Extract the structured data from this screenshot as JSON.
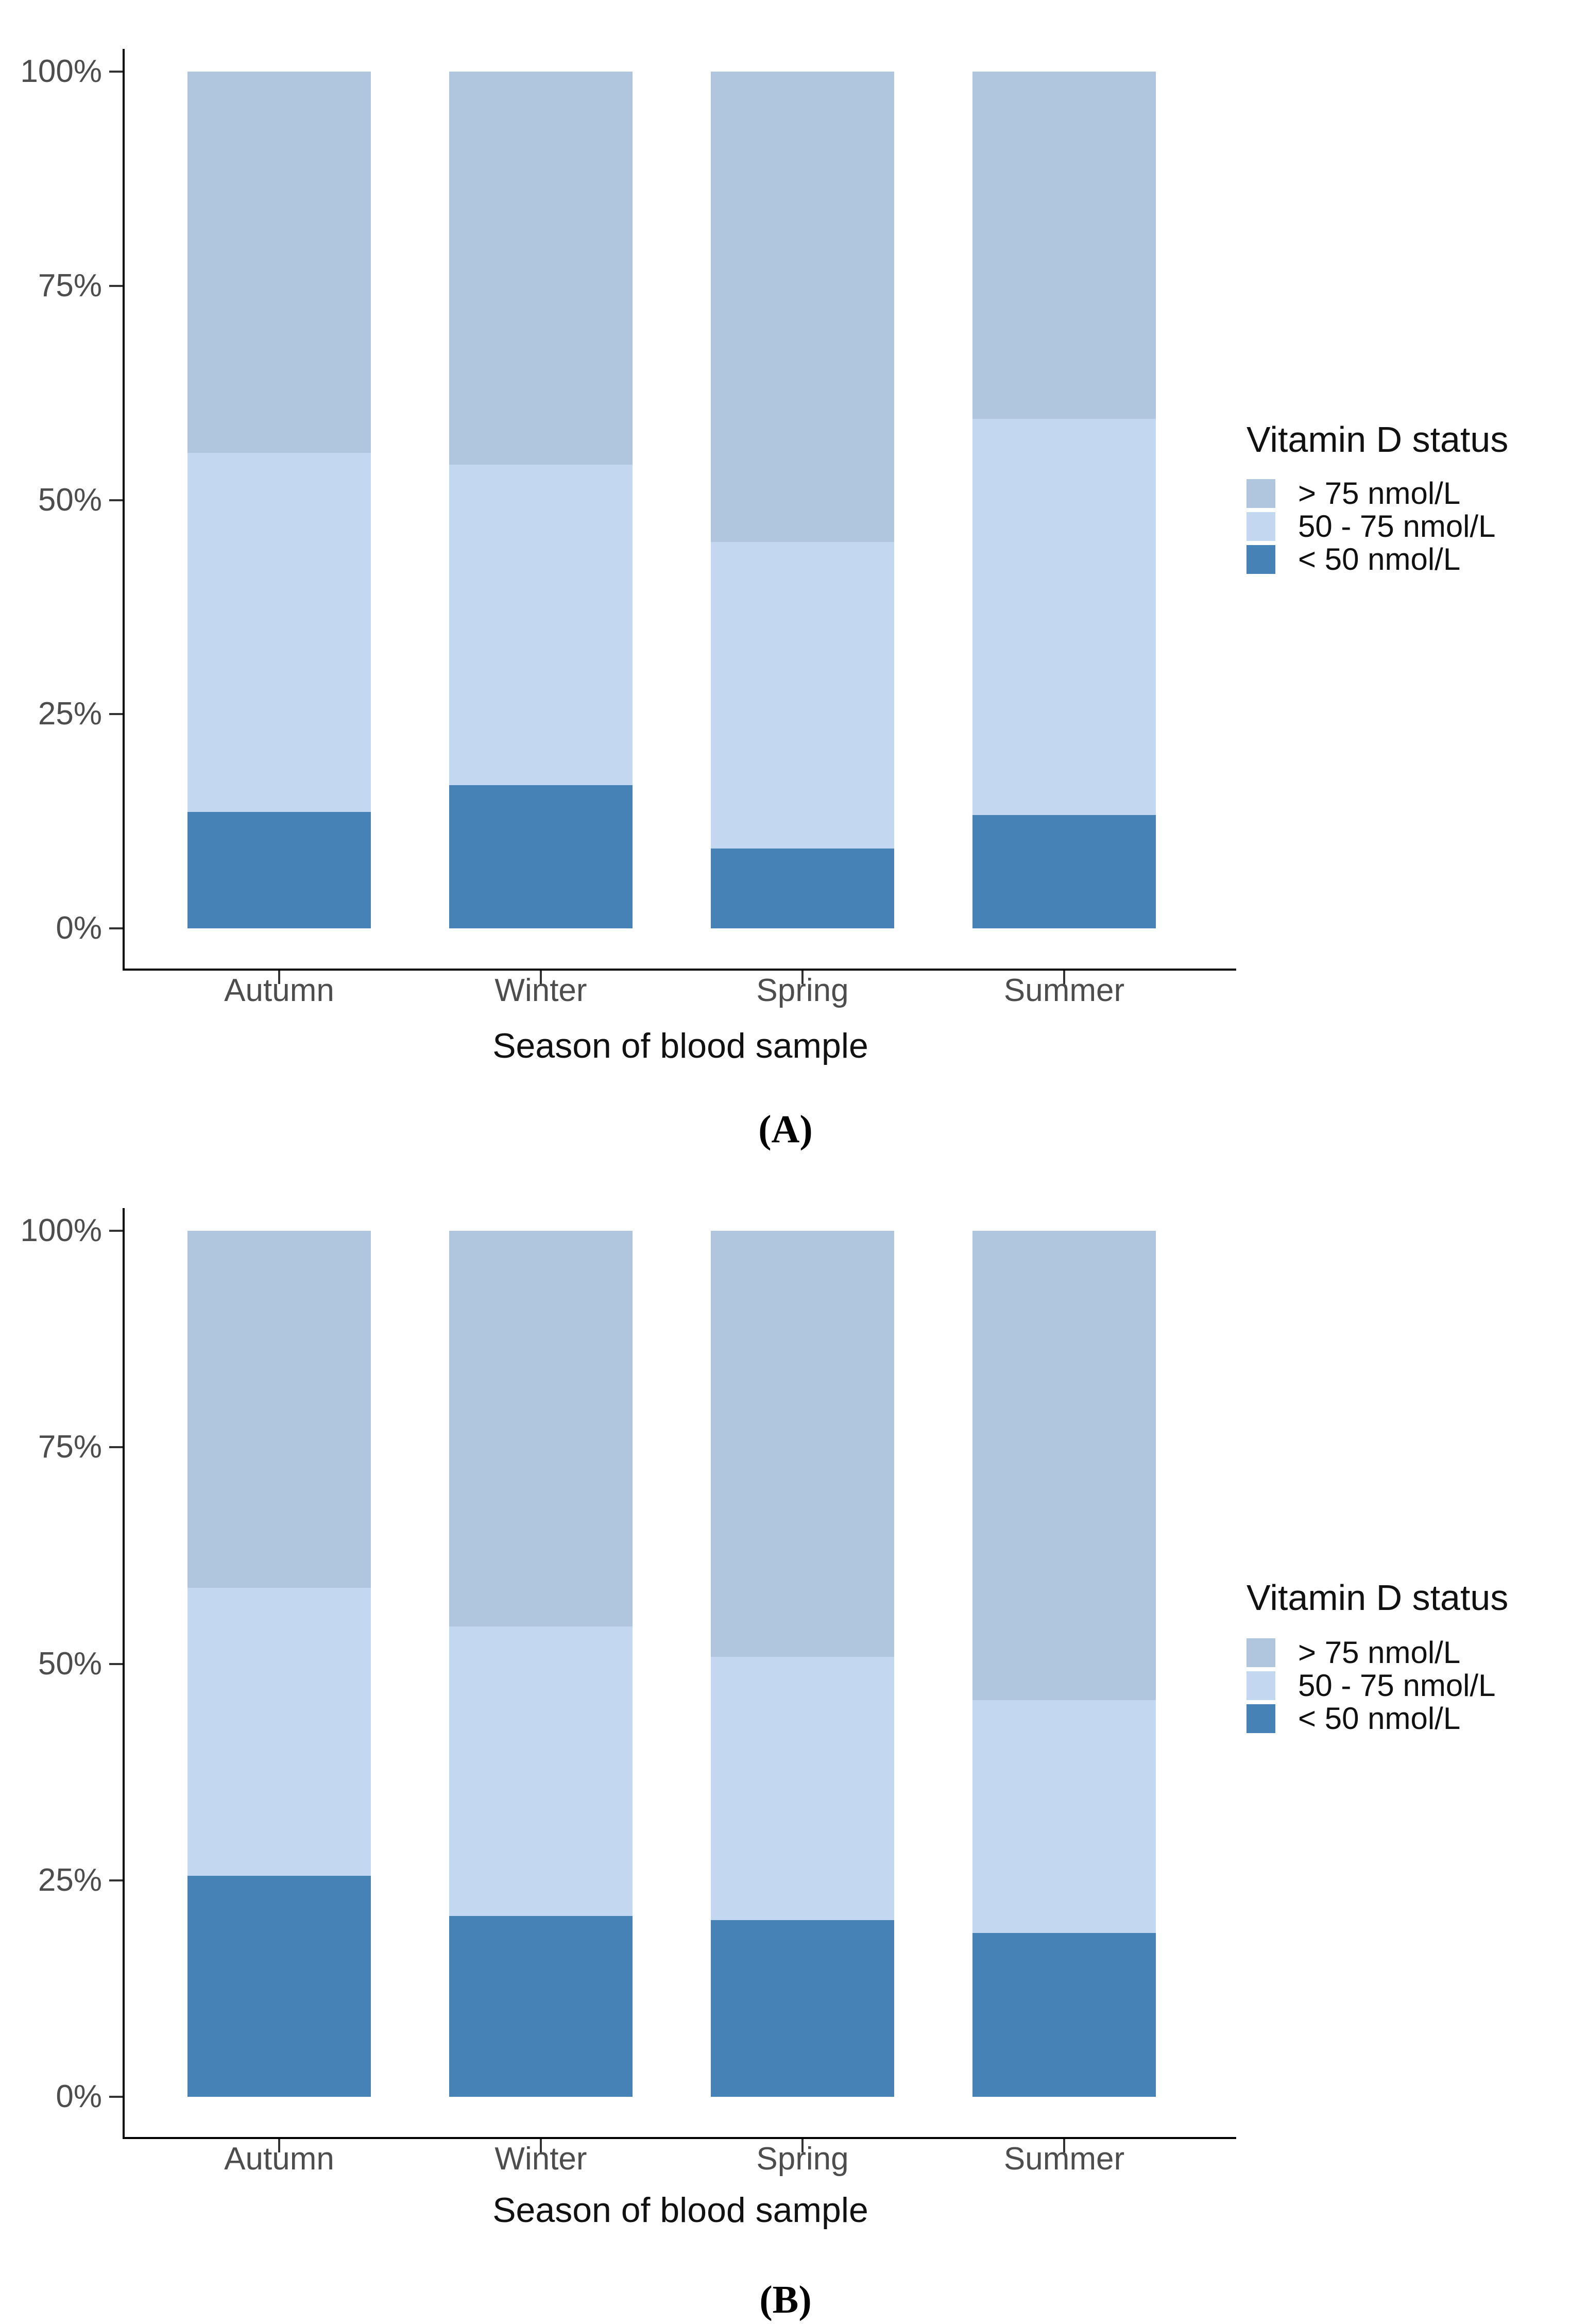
{
  "figure": {
    "panels": [
      {
        "id": "A",
        "caption": "(A)",
        "x_axis_title": "Season of blood sample",
        "y_tick_labels": [
          "100%",
          "75%",
          "50%",
          "25%",
          "0%"
        ],
        "categories": [
          "Autumn",
          "Winter",
          "Spring",
          "Summer"
        ],
        "legend": {
          "title": "Vitamin D status",
          "items": [
            {
              "label": "> 75 nmol/L",
              "color": "#AFC6DE"
            },
            {
              "label": "50 - 75 nmol/L",
              "color": "#C3D7F0"
            },
            {
              "label": "< 50 nmol/L",
              "color": "#4782B6"
            }
          ]
        },
        "stacks_bottom_to_top": [
          {
            "name": "< 50 nmol/L",
            "color": "#4782B6",
            "values": [
              13.6,
              16.7,
              9.3,
              13.2
            ]
          },
          {
            "name": "50 - 75 nmol/L",
            "color": "#C3D7F0",
            "values": [
              41.9,
              37.4,
              35.8,
              46.3
            ]
          },
          {
            "name": "> 75 nmol/L",
            "color": "#AFC6DE",
            "values": [
              44.5,
              45.9,
              54.9,
              40.5
            ]
          }
        ]
      },
      {
        "id": "B",
        "caption": "(B)",
        "x_axis_title": "Season of blood sample",
        "y_tick_labels": [
          "100%",
          "75%",
          "50%",
          "25%",
          "0%"
        ],
        "categories": [
          "Autumn",
          "Winter",
          "Spring",
          "Summer"
        ],
        "legend": {
          "title": "Vitamin D status",
          "items": [
            {
              "label": "> 75 nmol/L",
              "color": "#AFC6DE"
            },
            {
              "label": "50 - 75 nmol/L",
              "color": "#C3D7F0"
            },
            {
              "label": "< 50 nmol/L",
              "color": "#4782B6"
            }
          ]
        },
        "stacks_bottom_to_top": [
          {
            "name": "< 50 nmol/L",
            "color": "#4782B6",
            "values": [
              25.5,
              20.9,
              20.4,
              18.9
            ]
          },
          {
            "name": "50 - 75 nmol/L",
            "color": "#C3D7F0",
            "values": [
              33.3,
              33.4,
              30.4,
              26.9
            ]
          },
          {
            "name": "> 75 nmol/L",
            "color": "#AFC6DE",
            "values": [
              41.2,
              45.7,
              49.2,
              54.2
            ]
          }
        ]
      }
    ]
  },
  "chart_data": [
    {
      "type": "bar",
      "subtype": "stacked-percent",
      "panel": "A",
      "title": "",
      "xlabel": "Season of blood sample",
      "ylabel": "",
      "ylim": [
        0,
        100
      ],
      "y_ticks": [
        "0%",
        "25%",
        "50%",
        "75%",
        "100%"
      ],
      "grid": false,
      "legend_position": "right",
      "legend_title": "Vitamin D status",
      "categories": [
        "Autumn",
        "Winter",
        "Spring",
        "Summer"
      ],
      "series": [
        {
          "name": "< 50 nmol/L",
          "values": [
            13.6,
            16.7,
            9.3,
            13.2
          ]
        },
        {
          "name": "50 - 75 nmol/L",
          "values": [
            41.9,
            37.4,
            35.8,
            46.3
          ]
        },
        {
          "name": "> 75 nmol/L",
          "values": [
            44.5,
            45.9,
            54.9,
            40.5
          ]
        }
      ],
      "unit": "%"
    },
    {
      "type": "bar",
      "subtype": "stacked-percent",
      "panel": "B",
      "title": "",
      "xlabel": "Season of blood sample",
      "ylabel": "",
      "ylim": [
        0,
        100
      ],
      "y_ticks": [
        "0%",
        "25%",
        "50%",
        "75%",
        "100%"
      ],
      "grid": false,
      "legend_position": "right",
      "legend_title": "Vitamin D status",
      "categories": [
        "Autumn",
        "Winter",
        "Spring",
        "Summer"
      ],
      "series": [
        {
          "name": "< 50 nmol/L",
          "values": [
            25.5,
            20.9,
            20.4,
            18.9
          ]
        },
        {
          "name": "50 - 75 nmol/L",
          "values": [
            33.3,
            33.4,
            30.4,
            26.9
          ]
        },
        {
          "name": "> 75 nmol/L",
          "values": [
            41.2,
            45.7,
            49.2,
            54.2
          ]
        }
      ],
      "unit": "%"
    }
  ]
}
